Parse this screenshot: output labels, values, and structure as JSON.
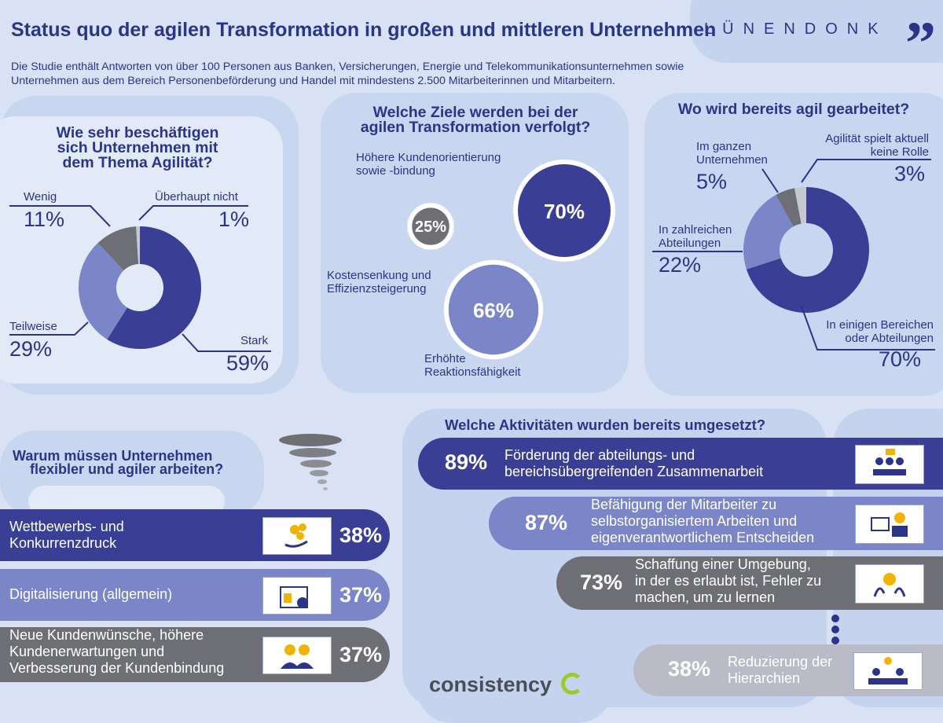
{
  "header": {
    "title": "Status quo der agilen Transformation in großen und mittleren Unternehmen",
    "subtitle": "Die Studie enthält Antworten von über 100 Personen aus Banken, Versicherungen, Energie und Telekommunikationsunternehmen sowie Unternehmen aus dem Bereich Personenbeförderung und Handel mit mindestens 2.500 Mitarbeiterinnen und Mitarbeitern.",
    "brand": "LÜNENDONK",
    "footer_logo": "consistency"
  },
  "colors": {
    "dark_blue": "#3a3f95",
    "mid_blue": "#7a86c7",
    "light_blue": "#a3aedd",
    "grey": "#6d6f74",
    "light_grey": "#c6c8cf"
  },
  "chart_data": [
    {
      "type": "pie",
      "title": "Wie sehr beschäftigen sich Unternehmen mit dem Thema Agilität?",
      "categories": [
        "Stark",
        "Teilweise",
        "Wenig",
        "Überhaupt nicht"
      ],
      "values": [
        59,
        29,
        11,
        1
      ],
      "labels": [
        "59%",
        "29%",
        "11%",
        "1%"
      ],
      "colors": [
        "#3a3f95",
        "#7a86c7",
        "#6d6f74",
        "#c6c8cf"
      ]
    },
    {
      "type": "bubble",
      "title": "Welche Ziele werden bei der agilen Transformation verfolgt?",
      "categories": [
        "Höhere Kundenorientierung sowie -bindung",
        "Kostensenkung und Effizienzsteigerung",
        "Erhöhte Reaktionsfähigkeit"
      ],
      "values": [
        70,
        25,
        66
      ],
      "labels": [
        "70%",
        "25%",
        "66%"
      ],
      "colors": [
        "#3a3f95",
        "#6d6f74",
        "#7a86c7"
      ]
    },
    {
      "type": "pie",
      "title": "Wo wird bereits agil gearbeitet?",
      "categories": [
        "In einigen Bereichen oder Abteilungen",
        "In zahlreichen Abteilungen",
        "Im ganzen Unternehmen",
        "Agilität spielt aktuell keine Rolle"
      ],
      "values": [
        70,
        22,
        5,
        3
      ],
      "labels": [
        "70%",
        "22%",
        "5%",
        "3%"
      ],
      "colors": [
        "#3a3f95",
        "#7a86c7",
        "#6d6f74",
        "#c6c8cf"
      ]
    },
    {
      "type": "bar",
      "title": "Warum müssen Unternehmen flexibler und agiler arbeiten?",
      "categories": [
        "Wettbewerbs- und Konkurrenzdruck",
        "Digitalisierung (allgemein)",
        "Neue Kundenwünsche, höhere Kundenerwartungen und Verbesserung der Kundenbindung"
      ],
      "values": [
        38,
        37,
        37
      ],
      "labels": [
        "38%",
        "37%",
        "37%"
      ]
    },
    {
      "type": "bar",
      "title": "Welche Aktivitäten wurden bereits umgesetzt?",
      "categories": [
        "Förderung der abteilungs- und bereichsübergreifenden Zusammenarbeit",
        "Befähigung der Mitarbeiter zu selbstorganisiertem Arbeiten und eigenverantwortlichem Entscheiden",
        "Schaffung einer Umgebung, in der es erlaubt ist, Fehler zu machen, um zu lernen",
        "Reduzierung der Hierarchien"
      ],
      "values": [
        89,
        87,
        73,
        38
      ],
      "labels": [
        "89%",
        "87%",
        "73%",
        "38%"
      ]
    }
  ],
  "pie1_text": {
    "title_lines": [
      "Wie sehr beschäftigen",
      "sich Unternehmen mit",
      "dem Thema Agilität?"
    ],
    "wenig": "Wenig",
    "wenig_pct": "11%",
    "ueberhaupt": "Überhaupt nicht",
    "ueberhaupt_pct": "1%",
    "teilweise": "Teilweise",
    "teilweise_pct": "29%",
    "stark": "Stark",
    "stark_pct": "59%"
  },
  "goals_text": {
    "title_lines": [
      "Welche Ziele werden bei der",
      "agilen Transformation verfolgt?"
    ],
    "kunden_lines": [
      "Höhere Kundenorientierung",
      "sowie -bindung"
    ],
    "kosten_lines": [
      "Kostensenkung und",
      "Effizienzsteigerung"
    ],
    "reaktion_lines": [
      "Erhöhte",
      "Reaktionsfähigkeit"
    ]
  },
  "pie2_text": {
    "title": "Wo wird bereits agil gearbeitet?",
    "ganzen_lines": [
      "Im ganzen",
      "Unternehmen"
    ],
    "ganzen_pct": "5%",
    "keine_lines": [
      "Agilität spielt aktuell",
      "keine Rolle"
    ],
    "keine_pct": "3%",
    "zahlreich_lines": [
      "In zahlreichen",
      "Abteilungen"
    ],
    "zahlreich_pct": "22%",
    "einigen_lines": [
      "In einigen Bereichen",
      "oder Abteilungen"
    ],
    "einigen_pct": "70%"
  },
  "why_text": {
    "title_lines": [
      "Warum müssen Unternehmen",
      "flexibler und agiler arbeiten?"
    ],
    "rows": [
      {
        "lines": [
          "Wettbewerbs- und",
          "Konkurrenzdruck"
        ],
        "pct": "38%",
        "icon": "coins-hand-icon"
      },
      {
        "lines": [
          "Digitalisierung (allgemein)"
        ],
        "pct": "37%",
        "icon": "digital-browser-icon"
      },
      {
        "lines": [
          "Neue Kundenwünsche, höhere",
          "Kundenerwartungen und",
          "Verbesserung der Kundenbindung"
        ],
        "pct": "37%",
        "icon": "customers-icon"
      }
    ]
  },
  "activities_text": {
    "title": "Welche Aktivitäten wurden bereits umgesetzt?",
    "rows": [
      {
        "lines": [
          "Förderung der abteilungs- und",
          "bereichsübergreifenden Zusammenarbeit"
        ],
        "pct": "89%",
        "icon": "team-meeting-icon"
      },
      {
        "lines": [
          "Befähigung der Mitarbeiter zu",
          "selbstorganisiertem Arbeiten und",
          "eigenverantwortlichem Entscheiden"
        ],
        "pct": "87%",
        "icon": "self-work-icon"
      },
      {
        "lines": [
          "Schaffung einer Umgebung,",
          "in der es erlaubt ist, Fehler zu",
          "machen, um zu lernen"
        ],
        "pct": "73%",
        "icon": "idea-hands-icon"
      },
      {
        "lines": [
          "Reduzierung der",
          "Hierarchien"
        ],
        "pct": "38%",
        "icon": "hierarchy-icon"
      }
    ]
  }
}
